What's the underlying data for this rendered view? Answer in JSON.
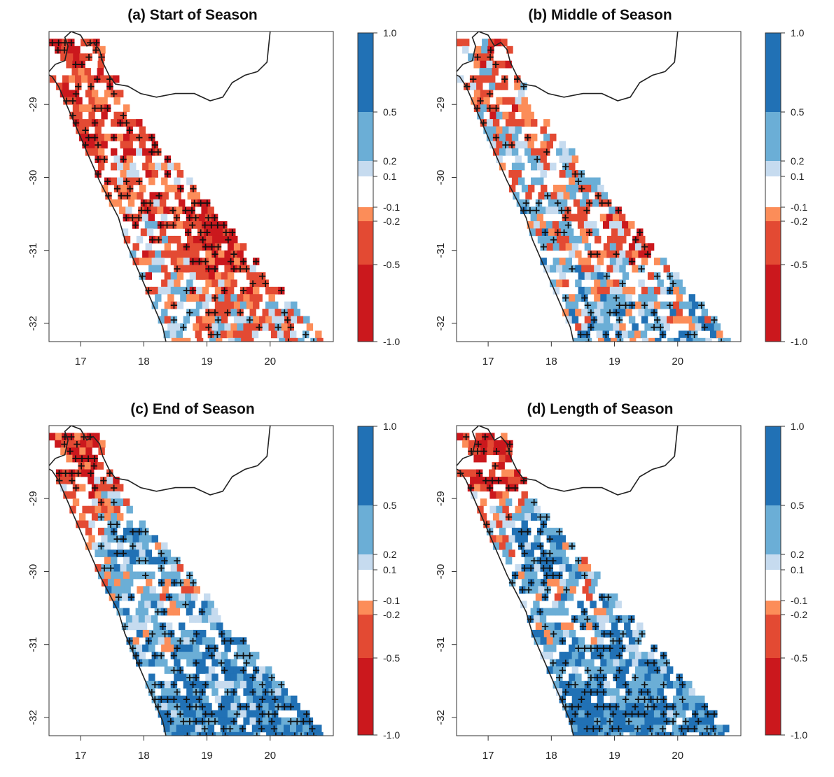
{
  "panels": [
    {
      "id": "a",
      "title": "(a) Start of Season",
      "pattern": {
        "base": -0.25,
        "grad": -0.12,
        "blob_x": 19.2,
        "blob_y": -30.7,
        "blob_amp": -0.55,
        "seed": 3
      }
    },
    {
      "id": "b",
      "title": "(b) Middle of Season",
      "pattern": {
        "base": 0.02,
        "grad": -0.1,
        "blob_x": 19.3,
        "blob_y": -30.7,
        "blob_amp": -0.45,
        "seed": 7
      }
    },
    {
      "id": "c",
      "title": "(c) End of Season",
      "pattern": {
        "base": 0.05,
        "grad": -0.28,
        "blob_x": 17.8,
        "blob_y": -29.4,
        "blob_amp": 0.55,
        "seed": 11
      }
    },
    {
      "id": "d",
      "title": "(d) Length of Season",
      "pattern": {
        "base": 0.05,
        "grad": -0.3,
        "blob_x": 17.8,
        "blob_y": -29.5,
        "blob_amp": 0.55,
        "seed": 19
      }
    }
  ],
  "axes": {
    "x_ticks": [
      17,
      18,
      19,
      20
    ],
    "y_ticks": [
      -29,
      -30,
      -31,
      -32
    ],
    "x_labels": [
      "17",
      "18",
      "19",
      "20"
    ],
    "y_labels": [
      "-29",
      "-30",
      "-31",
      "-32"
    ]
  },
  "extent": {
    "lon_min": 16.5,
    "lon_max": 21.0,
    "lat_min": -32.25,
    "lat_max": -28.0
  },
  "colorbar": {
    "breaks": [
      -1.0,
      -0.5,
      -0.2,
      -0.1,
      0.1,
      0.2,
      0.5,
      1.0
    ],
    "labels": [
      "-1.0",
      "-0.5",
      "-0.2",
      "-0.1",
      "0.1",
      "0.2",
      "0.5",
      "1.0"
    ],
    "colors": [
      "#cb181d",
      "#e34a33",
      "#fc8d59",
      "#ffffff",
      "#c6dbef",
      "#6baed6",
      "#2171b5"
    ]
  },
  "significance_marker": "+",
  "border_color": "#222222"
}
